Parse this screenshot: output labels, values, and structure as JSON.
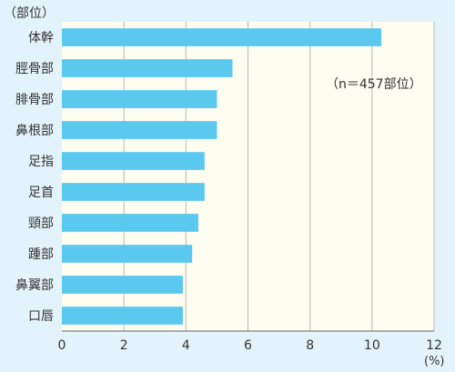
{
  "chart_data": {
    "type": "bar",
    "orientation": "horizontal",
    "ylabel": "（部位）",
    "xunit": "(%)",
    "annotation": "（n＝457部位）",
    "categories": [
      "体幹",
      "脛骨部",
      "腓骨部",
      "鼻根部",
      "足指",
      "足首",
      "頸部",
      "踵部",
      "鼻翼部",
      "口唇"
    ],
    "values": [
      10.3,
      5.5,
      5.0,
      5.0,
      4.6,
      4.6,
      4.4,
      4.2,
      3.9,
      3.9
    ],
    "xlim": [
      0,
      12
    ],
    "xticks": [
      0,
      2,
      4,
      6,
      8,
      10,
      12
    ],
    "grid": true,
    "colors": {
      "bar": "#5bc8f0",
      "plot_bg": "#fdfdf0",
      "page_bg": "#e3f3fb",
      "grid": "#b8b8b8",
      "axis": "#666666",
      "text": "#333333"
    }
  }
}
